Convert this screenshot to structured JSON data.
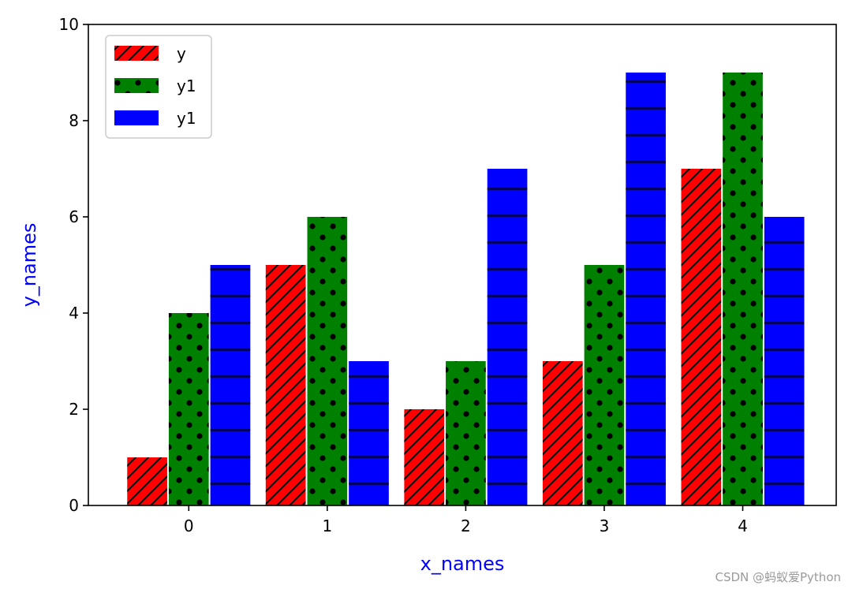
{
  "chart_data": {
    "type": "bar",
    "categories": [
      "0",
      "1",
      "2",
      "3",
      "4"
    ],
    "series": [
      {
        "name": "y",
        "values": [
          1,
          5,
          2,
          3,
          7
        ],
        "color": "#ff0000",
        "hatch": "diagonal"
      },
      {
        "name": "y1",
        "values": [
          4,
          6,
          3,
          5,
          9
        ],
        "color": "#008000",
        "hatch": "dots"
      },
      {
        "name": "y1",
        "values": [
          5,
          3,
          7,
          9,
          6
        ],
        "color": "#0000ff",
        "hatch": "horizontal"
      }
    ],
    "xlabel": "x_names",
    "ylabel": "y_names",
    "label_color": "#0000ff",
    "ylim": [
      0,
      10
    ],
    "yticks": [
      0,
      2,
      4,
      6,
      8,
      10
    ],
    "legend_position": "upper-left",
    "grid": false
  },
  "watermark": "CSDN @蚂蚁爱Python"
}
